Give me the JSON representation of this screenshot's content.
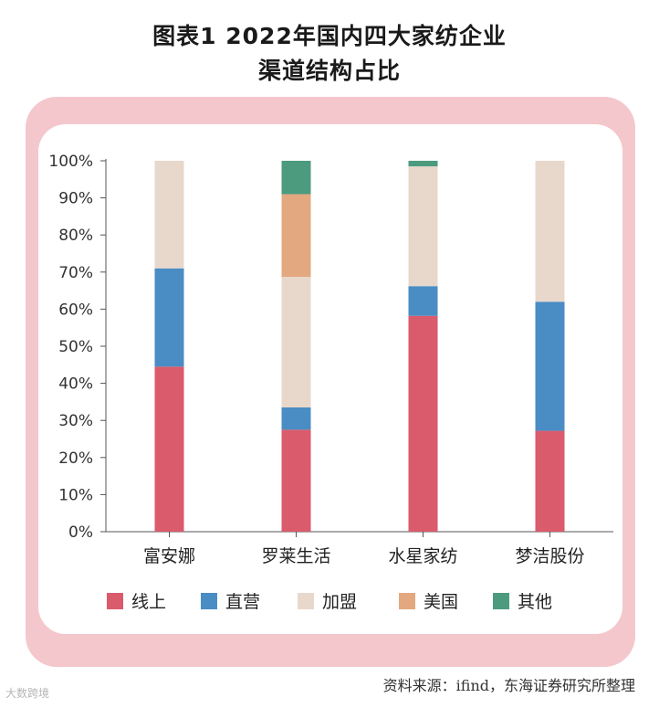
{
  "chart_data": {
    "type": "bar",
    "stacked": true,
    "title": "图表1   2022年国内四大家纺企业",
    "subtitle": "渠道结构占比",
    "categories": [
      "富安娜",
      "罗莱生活",
      "水星家纺",
      "梦洁股份"
    ],
    "series": [
      {
        "name": "线上",
        "color": "#d95b6c",
        "values": [
          44.5,
          27.5,
          58.2,
          27.2
        ]
      },
      {
        "name": "直营",
        "color": "#4a8cc4",
        "values": [
          26.5,
          6.0,
          8.0,
          34.8
        ]
      },
      {
        "name": "加盟",
        "color": "#e8d8cc",
        "values": [
          29.0,
          35.2,
          32.3,
          38.0
        ]
      },
      {
        "name": "美国",
        "color": "#e3a87f",
        "values": [
          0,
          22.3,
          0,
          0
        ]
      },
      {
        "name": "其他",
        "color": "#4c9b7e",
        "values": [
          0,
          9.0,
          1.5,
          0
        ]
      }
    ],
    "ylim": [
      0,
      100
    ],
    "yticks": [
      "0%",
      "10%",
      "20%",
      "30%",
      "40%",
      "50%",
      "60%",
      "70%",
      "80%",
      "90%",
      "100%"
    ],
    "legend_position": "bottom"
  },
  "source": "资料来源：ifind，东海证券研究所整理",
  "watermark": "大数跨境"
}
